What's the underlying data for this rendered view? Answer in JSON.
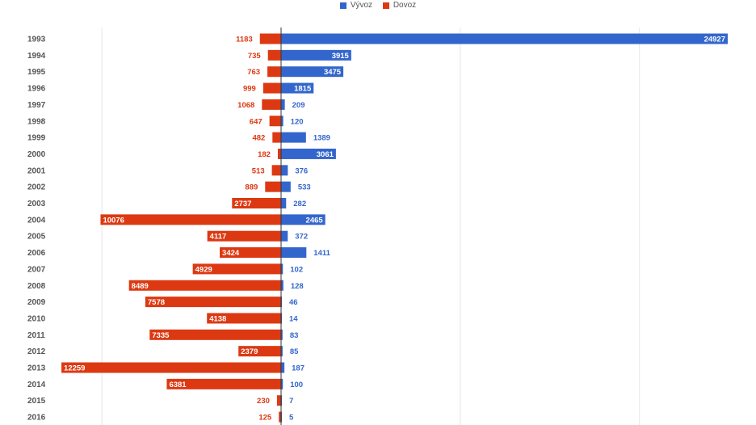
{
  "colors": {
    "export": "#3366cc",
    "import": "#dc3912",
    "grid": "#e6e6e6",
    "axis": "#333333"
  },
  "chart_data": {
    "type": "bar",
    "orientation": "horizontal",
    "legend_position": "top",
    "grid": true,
    "xlim": [
      -12259,
      24927
    ],
    "categories": [
      "1993",
      "1994",
      "1995",
      "1996",
      "1997",
      "1998",
      "1999",
      "2000",
      "2001",
      "2002",
      "2003",
      "2004",
      "2005",
      "2006",
      "2007",
      "2008",
      "2009",
      "2010",
      "2011",
      "2012",
      "2013",
      "2014",
      "2015",
      "2016"
    ],
    "series": [
      {
        "name": "Vývoz",
        "key": "export",
        "values": [
          24927,
          3915,
          3475,
          1815,
          209,
          120,
          1389,
          3061,
          376,
          533,
          282,
          2465,
          372,
          1411,
          102,
          128,
          46,
          14,
          83,
          85,
          187,
          100,
          7,
          5
        ]
      },
      {
        "name": "Dovoz",
        "key": "import",
        "values": [
          1183,
          735,
          763,
          999,
          1068,
          647,
          482,
          182,
          513,
          889,
          2737,
          10076,
          4117,
          3424,
          4929,
          8489,
          7578,
          4138,
          7335,
          2379,
          12259,
          6381,
          230,
          125
        ]
      }
    ]
  }
}
